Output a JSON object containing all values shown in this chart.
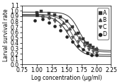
{
  "title": "",
  "xlabel": "Log concentration (μg/ml)",
  "ylabel": "Larval survival rate",
  "xlim": [
    0.75,
    2.25
  ],
  "ylim": [
    0.0,
    1.1
  ],
  "xticks": [
    0.75,
    1.0,
    1.25,
    1.5,
    1.75,
    2.0,
    2.25
  ],
  "yticks": [
    0.0,
    0.1,
    0.2,
    0.3,
    0.4,
    0.5,
    0.6,
    0.7,
    0.8,
    0.9,
    1.0,
    1.1
  ],
  "series": [
    {
      "label": "A",
      "marker": "s",
      "color": "#333333",
      "markersize": 3.5,
      "data_x": [
        1.0,
        1.08,
        1.2,
        1.3,
        1.4,
        1.5,
        1.6,
        1.7,
        1.78,
        1.85,
        1.9,
        1.95,
        2.0
      ],
      "data_y": [
        0.97,
        0.99,
        0.95,
        0.92,
        0.88,
        0.8,
        0.7,
        0.58,
        0.48,
        0.4,
        0.36,
        0.32,
        0.28
      ],
      "curve_params": {
        "top": 0.975,
        "bottom": 0.23,
        "ec50": 1.72,
        "hillslope": 5.0
      }
    },
    {
      "label": "B",
      "marker": "^",
      "color": "#444444",
      "markersize": 3.5,
      "data_x": [
        1.0,
        1.1,
        1.2,
        1.3,
        1.45,
        1.55,
        1.65,
        1.72,
        1.8,
        1.88,
        1.95,
        2.0
      ],
      "data_y": [
        0.93,
        0.91,
        0.88,
        0.84,
        0.78,
        0.68,
        0.58,
        0.5,
        0.42,
        0.36,
        0.32,
        0.3
      ],
      "curve_params": {
        "top": 0.93,
        "bottom": 0.26,
        "ec50": 1.65,
        "hillslope": 4.5
      }
    },
    {
      "label": "C",
      "marker": "v",
      "color": "#555555",
      "markersize": 3.5,
      "data_x": [
        1.0,
        1.1,
        1.2,
        1.3,
        1.4,
        1.5,
        1.6,
        1.7,
        1.8,
        1.88,
        1.95,
        2.0
      ],
      "data_y": [
        0.92,
        0.9,
        0.86,
        0.8,
        0.72,
        0.62,
        0.5,
        0.42,
        0.34,
        0.28,
        0.24,
        0.22
      ],
      "curve_params": {
        "top": 0.92,
        "bottom": 0.18,
        "ec50": 1.6,
        "hillslope": 4.5
      }
    },
    {
      "label": "D",
      "marker": "o",
      "color": "#222222",
      "markersize": 3.0,
      "data_x": [
        0.97,
        1.0,
        1.1,
        1.2,
        1.3,
        1.4,
        1.5,
        1.6,
        1.7,
        1.78,
        1.85,
        1.92,
        2.0
      ],
      "data_y": [
        0.82,
        0.93,
        0.85,
        0.78,
        0.72,
        0.63,
        0.52,
        0.43,
        0.35,
        0.28,
        0.22,
        0.18,
        0.18
      ],
      "curve_params": {
        "top": 0.9,
        "bottom": 0.15,
        "ec50": 1.55,
        "hillslope": 4.2
      }
    }
  ],
  "background_color": "#ffffff",
  "legend_loc": "upper right",
  "fontsize": 5.5
}
